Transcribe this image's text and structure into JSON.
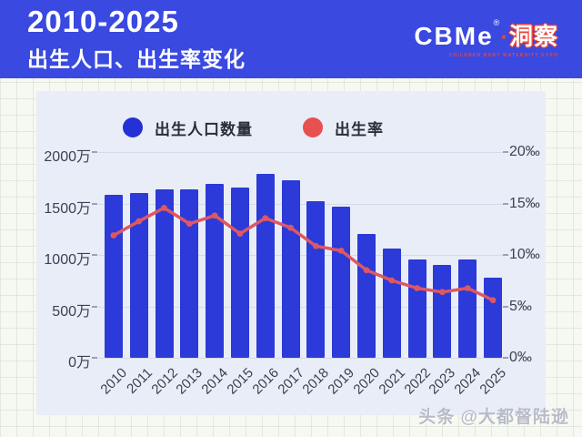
{
  "header": {
    "title_line1": "2010-2025",
    "title_line2": "出生人口、出生率变化",
    "logo": {
      "brand": "CBMe",
      "registered": "®",
      "dot": "·",
      "suffix": "洞察",
      "subtext": "CHILDREN BABY MATERNITY EXPO"
    }
  },
  "legend": [
    {
      "label": "出生人口数量",
      "color": "#2331d6"
    },
    {
      "label": "出生率",
      "color": "#e85050"
    }
  ],
  "chart_data": {
    "type": "bar",
    "title": "2010-2025 出生人口、出生率变化",
    "categories": [
      "2010",
      "2011",
      "2012",
      "2013",
      "2014",
      "2015",
      "2016",
      "2017",
      "2018",
      "2019",
      "2020",
      "2021",
      "2022",
      "2023",
      "2024",
      "2025"
    ],
    "series": [
      {
        "name": "出生人口数量",
        "type": "bar",
        "unit": "万",
        "axis": "left",
        "color": "#2b3ad8",
        "values": [
          1588,
          1604,
          1635,
          1640,
          1687,
          1655,
          1786,
          1723,
          1523,
          1465,
          1200,
          1062,
          956,
          902,
          954,
          780
        ]
      },
      {
        "name": "出生率",
        "type": "line",
        "unit": "‰",
        "axis": "right",
        "color": "#dd5862",
        "values": [
          11.9,
          13.27,
          14.57,
          13.03,
          13.83,
          12.07,
          13.57,
          12.64,
          10.86,
          10.41,
          8.52,
          7.52,
          6.77,
          6.39,
          6.77,
          5.6
        ]
      }
    ],
    "left_axis": {
      "ticks": [
        "2000万",
        "1500万",
        "1000万",
        "500万",
        "0万"
      ],
      "min": 0,
      "max": 2000
    },
    "right_axis": {
      "ticks": [
        "20‰",
        "15‰",
        "10‰",
        "5‰",
        "0‰"
      ],
      "min": 0,
      "max": 20
    },
    "grid": true,
    "legend_position": "top"
  },
  "watermark": "头条 @大都督陆逊"
}
